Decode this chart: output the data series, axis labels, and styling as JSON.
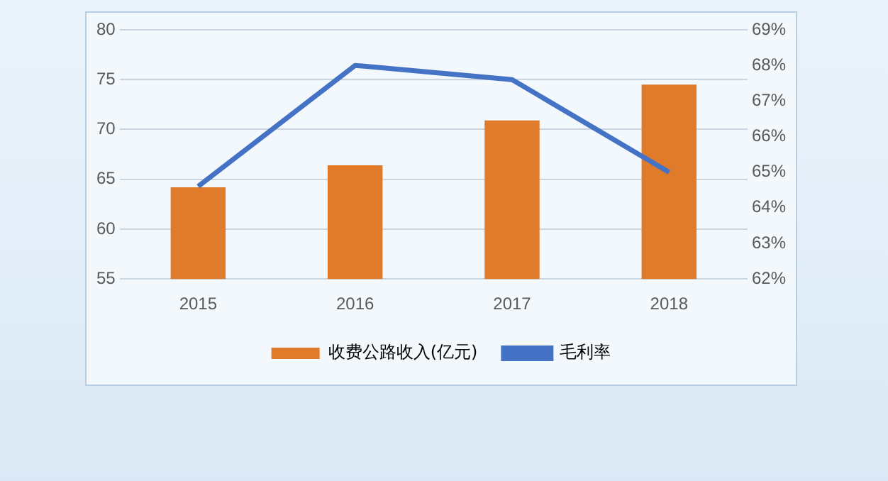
{
  "chart_data": {
    "type": "bar",
    "categories": [
      "2015",
      "2016",
      "2017",
      "2018"
    ],
    "series": [
      {
        "name": "收费公路收入(亿元)",
        "color": "#e07b2c",
        "values": [
          64.2,
          66.4,
          70.9,
          74.5
        ]
      },
      {
        "name": "毛利率",
        "type": "line",
        "axis": "y2",
        "color": "#4472c4",
        "values": [
          64.6,
          68.0,
          67.6,
          65.0
        ]
      }
    ],
    "ylim": [
      55,
      80
    ],
    "yticks": [
      55,
      60,
      65,
      70,
      75,
      80
    ],
    "y2lim": [
      62,
      69
    ],
    "y2ticks": [
      {
        "value": 62,
        "label": "62%"
      },
      {
        "value": 63,
        "label": "63%"
      },
      {
        "value": 64,
        "label": "64%"
      },
      {
        "value": 65,
        "label": "65%"
      },
      {
        "value": 66,
        "label": "66%"
      },
      {
        "value": 67,
        "label": "67%"
      },
      {
        "value": 68,
        "label": "68%"
      },
      {
        "value": 69,
        "label": "69%"
      }
    ],
    "grid": "y",
    "legend": "bottom",
    "marker": "none"
  }
}
